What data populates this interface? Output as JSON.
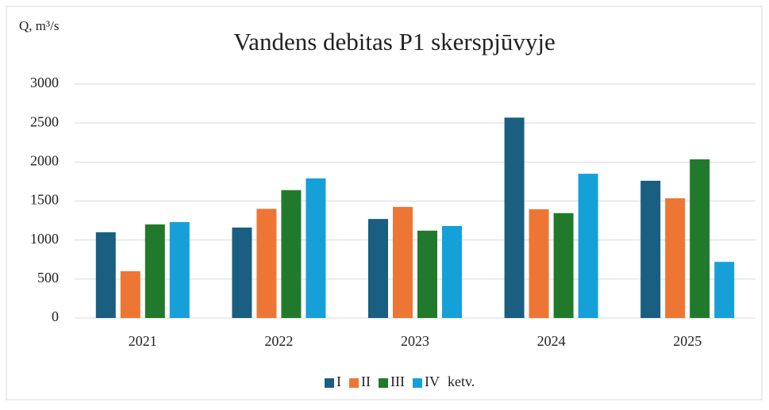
{
  "chart_data": {
    "type": "bar",
    "title": "Vandens debitas P1 skerspjūvyje",
    "y_label": "Q, m³/s",
    "categories": [
      "2021",
      "2022",
      "2023",
      "2024",
      "2025"
    ],
    "series": [
      {
        "name": "I",
        "color": "#1a5e82",
        "values": [
          1100,
          1160,
          1270,
          2570,
          1760
        ]
      },
      {
        "name": "II",
        "color": "#ed7634",
        "values": [
          600,
          1400,
          1425,
          1395,
          1535
        ]
      },
      {
        "name": "III",
        "color": "#217a2b",
        "values": [
          1200,
          1640,
          1120,
          1345,
          2035
        ]
      },
      {
        "name": "IV",
        "color": "#16a0d8",
        "values": [
          1230,
          1790,
          1180,
          1850,
          720
        ]
      }
    ],
    "legend_suffix": "ketv.",
    "ylim": [
      0,
      3000
    ],
    "yticks": [
      0,
      500,
      1000,
      1500,
      2000,
      2500,
      3000
    ],
    "grid": true,
    "legend": "bottom"
  }
}
